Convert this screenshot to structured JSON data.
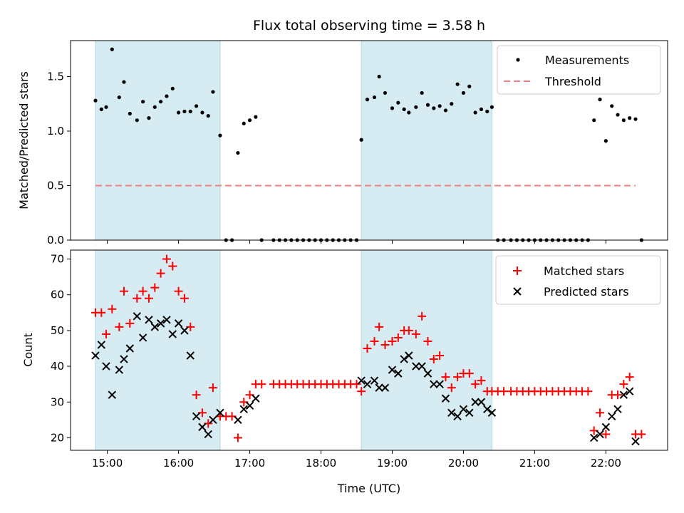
{
  "chart_data": [
    {
      "type": "scatter",
      "title": "Flux total observing time = 3.58 h",
      "xlabel": "",
      "ylabel": "Matched/Predicted stars",
      "xlim": [
        "14:29",
        "22:52"
      ],
      "ylim": [
        0,
        1.83
      ],
      "yticks": [
        "0.0",
        "0.5",
        "1.0",
        "1.5"
      ],
      "shaded_intervals": [
        [
          "14:50",
          "16:35"
        ],
        [
          "18:34",
          "20:24"
        ]
      ],
      "threshold": {
        "name": "Threshold",
        "value": 0.5,
        "x": [
          "14:50",
          "22:25"
        ],
        "color": "#f08080"
      },
      "legend_position": "upper right",
      "series": [
        {
          "name": "Measurements",
          "marker": "dot",
          "color": "#000000",
          "points": [
            [
              "14:50",
              1.28
            ],
            [
              "14:55",
              1.2
            ],
            [
              "14:59",
              1.22
            ],
            [
              "15:04",
              1.75
            ],
            [
              "15:10",
              1.31
            ],
            [
              "15:14",
              1.45
            ],
            [
              "15:19",
              1.16
            ],
            [
              "15:25",
              1.1
            ],
            [
              "15:30",
              1.27
            ],
            [
              "15:35",
              1.12
            ],
            [
              "15:40",
              1.22
            ],
            [
              "15:45",
              1.27
            ],
            [
              "15:50",
              1.32
            ],
            [
              "15:55",
              1.39
            ],
            [
              "16:00",
              1.17
            ],
            [
              "16:05",
              1.18
            ],
            [
              "16:10",
              1.18
            ],
            [
              "16:15",
              1.23
            ],
            [
              "16:20",
              1.17
            ],
            [
              "16:25",
              1.14
            ],
            [
              "16:29",
              1.36
            ],
            [
              "16:35",
              0.96
            ],
            [
              "16:40",
              0
            ],
            [
              "16:45",
              0
            ],
            [
              "16:50",
              0.8
            ],
            [
              "16:55",
              1.07
            ],
            [
              "17:00",
              1.1
            ],
            [
              "17:05",
              1.13
            ],
            [
              "17:10",
              0
            ],
            [
              "17:20",
              0
            ],
            [
              "17:25",
              0
            ],
            [
              "17:30",
              0
            ],
            [
              "17:35",
              0
            ],
            [
              "17:40",
              0
            ],
            [
              "17:45",
              0
            ],
            [
              "17:50",
              0
            ],
            [
              "17:55",
              0
            ],
            [
              "18:00",
              0
            ],
            [
              "18:05",
              0
            ],
            [
              "18:10",
              0
            ],
            [
              "18:15",
              0
            ],
            [
              "18:20",
              0
            ],
            [
              "18:25",
              0
            ],
            [
              "18:30",
              0
            ],
            [
              "18:34",
              0.92
            ],
            [
              "18:39",
              1.29
            ],
            [
              "18:45",
              1.31
            ],
            [
              "18:49",
              1.5
            ],
            [
              "18:54",
              1.35
            ],
            [
              "19:00",
              1.21
            ],
            [
              "19:05",
              1.26
            ],
            [
              "19:10",
              1.2
            ],
            [
              "19:14",
              1.17
            ],
            [
              "19:20",
              1.22
            ],
            [
              "19:25",
              1.35
            ],
            [
              "19:30",
              1.24
            ],
            [
              "19:35",
              1.21
            ],
            [
              "19:40",
              1.23
            ],
            [
              "19:45",
              1.19
            ],
            [
              "19:50",
              1.25
            ],
            [
              "19:55",
              1.43
            ],
            [
              "20:00",
              1.35
            ],
            [
              "20:05",
              1.41
            ],
            [
              "20:10",
              1.17
            ],
            [
              "20:15",
              1.2
            ],
            [
              "20:20",
              1.18
            ],
            [
              "20:24",
              1.22
            ],
            [
              "20:29",
              0
            ],
            [
              "20:34",
              0
            ],
            [
              "20:40",
              0
            ],
            [
              "20:45",
              0
            ],
            [
              "20:50",
              0
            ],
            [
              "20:55",
              0
            ],
            [
              "21:00",
              0
            ],
            [
              "21:05",
              0
            ],
            [
              "21:10",
              0
            ],
            [
              "21:15",
              0
            ],
            [
              "21:20",
              0
            ],
            [
              "21:25",
              0
            ],
            [
              "21:30",
              0
            ],
            [
              "21:35",
              0
            ],
            [
              "21:40",
              0
            ],
            [
              "21:45",
              0
            ],
            [
              "21:50",
              1.1
            ],
            [
              "21:55",
              1.29
            ],
            [
              "22:00",
              0.91
            ],
            [
              "22:05",
              1.23
            ],
            [
              "22:10",
              1.15
            ],
            [
              "22:15",
              1.1
            ],
            [
              "22:20",
              1.12
            ],
            [
              "22:25",
              1.11
            ],
            [
              "22:30",
              0
            ]
          ]
        }
      ]
    },
    {
      "type": "scatter",
      "title": "",
      "xlabel": "Time (UTC)",
      "ylabel": "Count",
      "xlim": [
        "14:29",
        "22:52"
      ],
      "ylim": [
        16.5,
        72.5
      ],
      "xticks": [
        "15:00",
        "16:00",
        "17:00",
        "18:00",
        "19:00",
        "20:00",
        "21:00",
        "22:00"
      ],
      "yticks": [
        "20",
        "30",
        "40",
        "50",
        "60",
        "70"
      ],
      "shaded_intervals": [
        [
          "14:50",
          "16:35"
        ],
        [
          "18:34",
          "20:24"
        ]
      ],
      "legend_position": "upper right",
      "series": [
        {
          "name": "Matched stars",
          "marker": "plus",
          "color": "#ff0000",
          "points": [
            [
              "14:50",
              55
            ],
            [
              "14:55",
              55
            ],
            [
              "14:59",
              49
            ],
            [
              "15:04",
              56
            ],
            [
              "15:10",
              51
            ],
            [
              "15:14",
              61
            ],
            [
              "15:19",
              52
            ],
            [
              "15:25",
              59
            ],
            [
              "15:30",
              61
            ],
            [
              "15:35",
              59
            ],
            [
              "15:40",
              62
            ],
            [
              "15:45",
              66
            ],
            [
              "15:50",
              70
            ],
            [
              "15:55",
              68
            ],
            [
              "16:00",
              61
            ],
            [
              "16:05",
              59
            ],
            [
              "16:10",
              51
            ],
            [
              "16:15",
              32
            ],
            [
              "16:20",
              27
            ],
            [
              "16:25",
              24
            ],
            [
              "16:29",
              34
            ],
            [
              "16:35",
              26
            ],
            [
              "16:40",
              26
            ],
            [
              "16:45",
              26
            ],
            [
              "16:50",
              20
            ],
            [
              "16:55",
              30
            ],
            [
              "17:00",
              32
            ],
            [
              "17:05",
              35
            ],
            [
              "17:10",
              35
            ],
            [
              "17:20",
              35
            ],
            [
              "17:25",
              35
            ],
            [
              "17:30",
              35
            ],
            [
              "17:35",
              35
            ],
            [
              "17:40",
              35
            ],
            [
              "17:45",
              35
            ],
            [
              "17:50",
              35
            ],
            [
              "17:55",
              35
            ],
            [
              "18:00",
              35
            ],
            [
              "18:05",
              35
            ],
            [
              "18:10",
              35
            ],
            [
              "18:15",
              35
            ],
            [
              "18:20",
              35
            ],
            [
              "18:25",
              35
            ],
            [
              "18:30",
              35
            ],
            [
              "18:34",
              33
            ],
            [
              "18:39",
              45
            ],
            [
              "18:45",
              47
            ],
            [
              "18:49",
              51
            ],
            [
              "18:54",
              46
            ],
            [
              "19:00",
              47
            ],
            [
              "19:05",
              48
            ],
            [
              "19:10",
              50
            ],
            [
              "19:14",
              50
            ],
            [
              "19:20",
              49
            ],
            [
              "19:25",
              54
            ],
            [
              "19:30",
              47
            ],
            [
              "19:35",
              42
            ],
            [
              "19:40",
              43
            ],
            [
              "19:45",
              37
            ],
            [
              "19:50",
              34
            ],
            [
              "19:55",
              37
            ],
            [
              "20:00",
              38
            ],
            [
              "20:05",
              38
            ],
            [
              "20:10",
              35
            ],
            [
              "20:15",
              36
            ],
            [
              "20:20",
              33
            ],
            [
              "20:24",
              33
            ],
            [
              "20:29",
              33
            ],
            [
              "20:34",
              33
            ],
            [
              "20:40",
              33
            ],
            [
              "20:45",
              33
            ],
            [
              "20:50",
              33
            ],
            [
              "20:55",
              33
            ],
            [
              "21:00",
              33
            ],
            [
              "21:05",
              33
            ],
            [
              "21:10",
              33
            ],
            [
              "21:15",
              33
            ],
            [
              "21:20",
              33
            ],
            [
              "21:25",
              33
            ],
            [
              "21:30",
              33
            ],
            [
              "21:35",
              33
            ],
            [
              "21:40",
              33
            ],
            [
              "21:45",
              33
            ],
            [
              "21:50",
              22
            ],
            [
              "21:55",
              27
            ],
            [
              "22:00",
              21
            ],
            [
              "22:05",
              32
            ],
            [
              "22:10",
              32
            ],
            [
              "22:15",
              35
            ],
            [
              "22:20",
              37
            ],
            [
              "22:25",
              21
            ],
            [
              "22:30",
              21
            ]
          ]
        },
        {
          "name": "Predicted stars",
          "marker": "x",
          "color": "#000000",
          "points": [
            [
              "14:50",
              43
            ],
            [
              "14:55",
              46
            ],
            [
              "14:59",
              40
            ],
            [
              "15:04",
              32
            ],
            [
              "15:10",
              39
            ],
            [
              "15:14",
              42
            ],
            [
              "15:19",
              45
            ],
            [
              "15:25",
              54
            ],
            [
              "15:30",
              48
            ],
            [
              "15:35",
              53
            ],
            [
              "15:40",
              51
            ],
            [
              "15:45",
              52
            ],
            [
              "15:50",
              53
            ],
            [
              "15:55",
              49
            ],
            [
              "16:00",
              52
            ],
            [
              "16:05",
              50
            ],
            [
              "16:10",
              43
            ],
            [
              "16:15",
              26
            ],
            [
              "16:20",
              23
            ],
            [
              "16:25",
              21
            ],
            [
              "16:29",
              25
            ],
            [
              "16:35",
              27
            ],
            [
              "16:50",
              25
            ],
            [
              "16:55",
              28
            ],
            [
              "17:00",
              29
            ],
            [
              "17:05",
              31
            ],
            [
              "18:34",
              36
            ],
            [
              "18:39",
              35
            ],
            [
              "18:45",
              36
            ],
            [
              "18:49",
              34
            ],
            [
              "18:54",
              34
            ],
            [
              "19:00",
              39
            ],
            [
              "19:05",
              38
            ],
            [
              "19:10",
              42
            ],
            [
              "19:14",
              43
            ],
            [
              "19:20",
              40
            ],
            [
              "19:25",
              40
            ],
            [
              "19:30",
              38
            ],
            [
              "19:35",
              35
            ],
            [
              "19:40",
              35
            ],
            [
              "19:45",
              31
            ],
            [
              "19:50",
              27
            ],
            [
              "19:55",
              26
            ],
            [
              "20:00",
              28
            ],
            [
              "20:05",
              27
            ],
            [
              "20:10",
              30
            ],
            [
              "20:15",
              30
            ],
            [
              "20:20",
              28
            ],
            [
              "20:24",
              27
            ],
            [
              "21:50",
              20
            ],
            [
              "21:55",
              21
            ],
            [
              "22:00",
              23
            ],
            [
              "22:05",
              26
            ],
            [
              "22:10",
              28
            ],
            [
              "22:15",
              32
            ],
            [
              "22:20",
              33
            ],
            [
              "22:25",
              19
            ]
          ]
        }
      ]
    }
  ]
}
